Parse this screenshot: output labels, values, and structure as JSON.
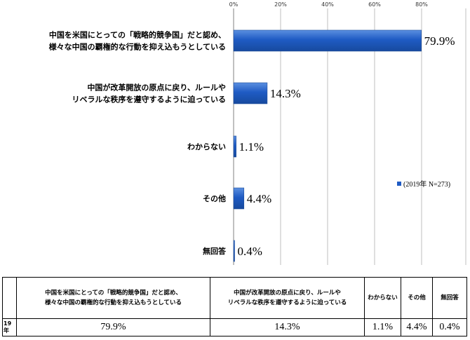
{
  "chart_data": {
    "type": "bar",
    "orientation": "horizontal",
    "categories": [
      "中国を米国にとっての「戦略的競争国」だと認め、\n様々な中国の覇権的な行動を抑え込もうとしている",
      "中国が改革開放の原点に戻り、ルールや\nリベラルな秩序を遵守するように迫っている",
      "わからない",
      "その他",
      "無回答"
    ],
    "series": [
      {
        "name": "(2019年 N=273)",
        "values": [
          79.9,
          14.3,
          1.1,
          4.4,
          0.4
        ]
      }
    ],
    "value_labels": [
      "79.9%",
      "14.3%",
      "1.1%",
      "4.4%",
      "0.4%"
    ],
    "xlim": [
      0,
      90
    ],
    "xticks": [
      0,
      20,
      40,
      60,
      80
    ],
    "xtick_labels": [
      "0%",
      "20%",
      "40%",
      "60%",
      "80%"
    ],
    "grid": true,
    "legend": {
      "label": "(2019年 N=273)",
      "position": "right"
    },
    "bar_color": "#1f5bc4"
  },
  "table": {
    "headers": [
      "中国を米国にとっての「戦略的競争国」だと認め、\n様々な中国の覇権的な行動を抑え込もうとしている",
      "中国が改革開放の原点に戻り、ルールや\nリベラルな秩序を遵守するように迫っている",
      "わからない",
      "その他",
      "無回答"
    ],
    "row_label": "19年",
    "values": [
      "79.9%",
      "14.3%",
      "1.1%",
      "4.4%",
      "0.4%"
    ]
  }
}
